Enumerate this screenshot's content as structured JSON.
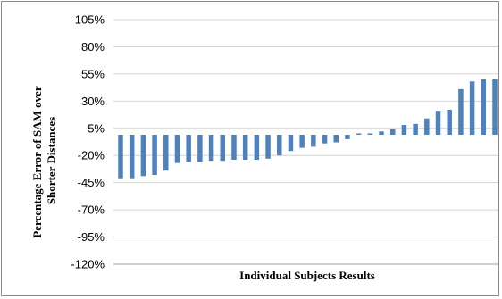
{
  "chart_data": {
    "type": "bar",
    "title": "",
    "xlabel": "Individual  Subjects Results",
    "ylabel_lines": [
      "Percentage Error of SAM over",
      "Shorter Distances"
    ],
    "ylim": [
      -120,
      105
    ],
    "yticks": [
      105,
      80,
      55,
      30,
      5,
      -20,
      -45,
      -70,
      -95,
      -120
    ],
    "ytick_labels": [
      "105%",
      "80%",
      "55%",
      "30%",
      "5%",
      "-20%",
      "-45%",
      "-70%",
      "-95%",
      "-120%"
    ],
    "grid": true,
    "bar_color": "#4F81BD",
    "values": [
      -40,
      -40,
      -38,
      -37,
      -33,
      -26,
      -25,
      -25,
      -24,
      -24,
      -23,
      -23,
      -23,
      -22,
      -19,
      -15,
      -12,
      -11,
      -8,
      -7,
      -4,
      0,
      1,
      3,
      5,
      9,
      10,
      15,
      22,
      23,
      42,
      49,
      51,
      51
    ]
  }
}
